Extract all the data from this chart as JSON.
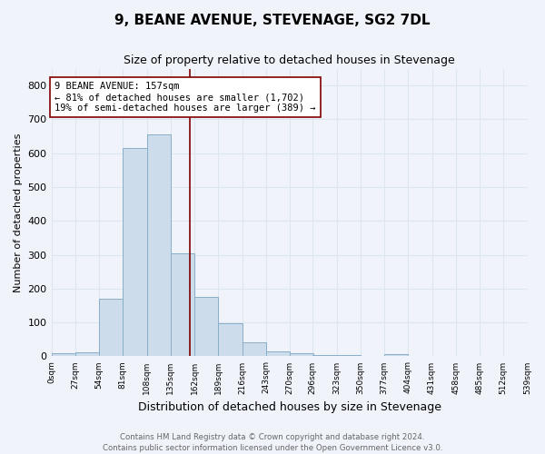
{
  "title": "9, BEANE AVENUE, STEVENAGE, SG2 7DL",
  "subtitle": "Size of property relative to detached houses in Stevenage",
  "xlabel": "Distribution of detached houses by size in Stevenage",
  "ylabel": "Number of detached properties",
  "bin_edges": [
    0,
    27,
    54,
    81,
    108,
    135,
    162,
    189,
    216,
    243,
    270,
    296,
    323,
    350,
    377,
    404,
    431,
    458,
    485,
    512,
    539
  ],
  "bar_heights": [
    8,
    12,
    170,
    615,
    655,
    305,
    175,
    98,
    42,
    15,
    10,
    5,
    3,
    0,
    7,
    0,
    0,
    0,
    0,
    0
  ],
  "bar_color": "#cddceb",
  "bar_edge_color": "#8aaec8",
  "property_value": 157,
  "property_line_color": "#800000",
  "annotation_text": "9 BEANE AVENUE: 157sqm\n← 81% of detached houses are smaller (1,702)\n19% of semi-detached houses are larger (389) →",
  "annotation_box_color": "white",
  "annotation_box_edge_color": "#800000",
  "ylim": [
    0,
    850
  ],
  "yticks": [
    0,
    100,
    200,
    300,
    400,
    500,
    600,
    700,
    800
  ],
  "tick_labels": [
    "0sqm",
    "27sqm",
    "54sqm",
    "81sqm",
    "108sqm",
    "135sqm",
    "162sqm",
    "189sqm",
    "216sqm",
    "243sqm",
    "270sqm",
    "296sqm",
    "323sqm",
    "350sqm",
    "377sqm",
    "404sqm",
    "431sqm",
    "458sqm",
    "485sqm",
    "512sqm",
    "539sqm"
  ],
  "footer_text": "Contains HM Land Registry data © Crown copyright and database right 2024.\nContains public sector information licensed under the Open Government Licence v3.0.",
  "grid_color": "#dde5f0",
  "background_color": "#f0f4fa"
}
